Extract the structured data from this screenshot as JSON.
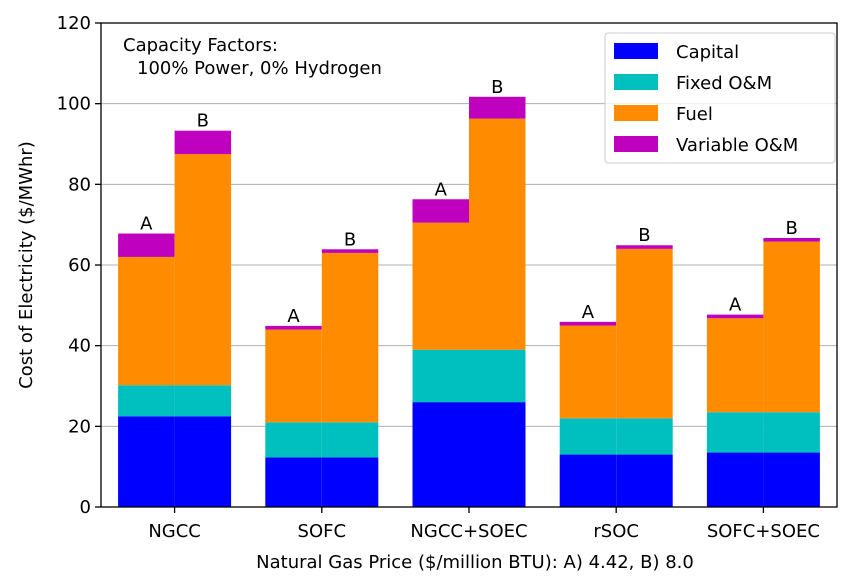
{
  "chart_data": {
    "type": "bar",
    "stacked": true,
    "ylabel": "Cost of Electricity ($/MWhr)",
    "xlabel": "Natural Gas Price ($/million BTU): A) 4.42, B) 8.0",
    "ylim": [
      0,
      120
    ],
    "yticks": [
      "0",
      "20",
      "40",
      "60",
      "80",
      "100",
      "120"
    ],
    "grid": "horizontal",
    "categories": [
      "NGCC",
      "SOFC",
      "NGCC+SOEC",
      "rSOC",
      "SOFC+SOEC"
    ],
    "sub_bars": [
      "A",
      "B"
    ],
    "annotation": {
      "line1": "Capacity Factors:",
      "line2": "100% Power, 0% Hydrogen"
    },
    "legend_position": "top-right",
    "series": [
      {
        "name": "Capital",
        "color": "#0000ff",
        "A": [
          22.5,
          12.3,
          26.0,
          13.0,
          13.5
        ],
        "B": [
          22.5,
          12.3,
          26.0,
          13.0,
          13.5
        ]
      },
      {
        "name": "Fixed O&M",
        "color": "#00bfbf",
        "A": [
          7.7,
          8.7,
          13.0,
          9.0,
          10.0
        ],
        "B": [
          7.7,
          8.7,
          13.0,
          9.0,
          10.0
        ]
      },
      {
        "name": "Fuel",
        "color": "#ff8c00",
        "A": [
          31.8,
          23.0,
          31.5,
          23.0,
          23.3
        ],
        "B": [
          57.3,
          42.0,
          57.3,
          42.0,
          42.3
        ]
      },
      {
        "name": "Variable O&M",
        "color": "#bf00bf",
        "A": [
          5.8,
          0.9,
          5.8,
          0.9,
          0.9
        ],
        "B": [
          5.8,
          0.9,
          5.4,
          0.9,
          0.9
        ]
      }
    ]
  }
}
